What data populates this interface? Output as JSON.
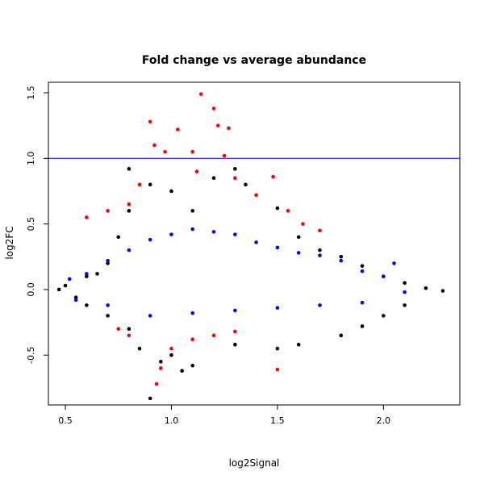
{
  "chart_data": {
    "type": "scatter",
    "title": "Fold change vs average abundance",
    "xlabel": "log2Signal",
    "ylabel": "log2FC",
    "xlim": [
      0.42,
      2.36
    ],
    "ylim": [
      -0.88,
      1.58
    ],
    "xticks": [
      0.5,
      1.0,
      1.5,
      2.0
    ],
    "yticks": [
      -0.5,
      0.0,
      0.5,
      1.0,
      1.5
    ],
    "xtick_labels": [
      "0.5",
      "1.0",
      "1.5",
      "2.0"
    ],
    "ytick_labels": [
      "-0.5",
      "0.0",
      "0.5",
      "1.0",
      "1.5"
    ],
    "grid": false,
    "legend": "none",
    "reference_lines": [
      {
        "axis": "y",
        "value": 1.0,
        "color": "#0000ff"
      }
    ],
    "colors": {
      "black": "#000000",
      "blue": "#0000ff",
      "red": "#ff0000",
      "threshold": "#0000ff"
    },
    "series": [
      {
        "color": "#000000",
        "points": [
          [
            0.47,
            0.0
          ],
          [
            0.5,
            0.03
          ],
          [
            0.55,
            -0.06
          ],
          [
            0.6,
            0.1
          ],
          [
            0.65,
            0.12
          ],
          [
            0.7,
            0.2
          ],
          [
            0.75,
            0.4
          ],
          [
            0.8,
            0.6
          ],
          [
            0.8,
            0.92
          ],
          [
            0.9,
            0.8
          ],
          [
            1.0,
            0.75
          ],
          [
            1.1,
            0.6
          ],
          [
            1.2,
            0.85
          ],
          [
            1.3,
            0.92
          ],
          [
            1.35,
            0.8
          ],
          [
            1.5,
            0.62
          ],
          [
            1.6,
            0.4
          ],
          [
            1.7,
            0.3
          ],
          [
            1.8,
            0.25
          ],
          [
            1.9,
            0.18
          ],
          [
            2.0,
            0.1
          ],
          [
            2.1,
            0.05
          ],
          [
            2.2,
            0.01
          ],
          [
            2.28,
            -0.01
          ],
          [
            0.9,
            -0.83
          ],
          [
            0.95,
            -0.55
          ],
          [
            1.0,
            -0.5
          ],
          [
            1.05,
            -0.62
          ],
          [
            1.1,
            -0.58
          ],
          [
            1.3,
            -0.42
          ],
          [
            1.5,
            -0.45
          ],
          [
            1.6,
            -0.42
          ],
          [
            1.8,
            -0.35
          ],
          [
            1.9,
            -0.28
          ],
          [
            2.0,
            -0.2
          ],
          [
            2.1,
            -0.12
          ],
          [
            0.6,
            -0.12
          ],
          [
            0.7,
            -0.2
          ],
          [
            0.8,
            -0.3
          ],
          [
            0.85,
            -0.45
          ]
        ]
      },
      {
        "color": "#0000ff",
        "points": [
          [
            0.52,
            0.08
          ],
          [
            0.6,
            0.12
          ],
          [
            0.7,
            0.22
          ],
          [
            0.8,
            0.3
          ],
          [
            0.9,
            0.38
          ],
          [
            1.0,
            0.42
          ],
          [
            1.1,
            0.46
          ],
          [
            1.2,
            0.44
          ],
          [
            1.3,
            0.42
          ],
          [
            1.4,
            0.36
          ],
          [
            1.5,
            0.32
          ],
          [
            1.6,
            0.28
          ],
          [
            1.7,
            0.26
          ],
          [
            1.8,
            0.22
          ],
          [
            1.9,
            0.14
          ],
          [
            2.0,
            0.1
          ],
          [
            2.05,
            0.2
          ],
          [
            2.1,
            -0.02
          ],
          [
            0.55,
            -0.08
          ],
          [
            0.7,
            -0.12
          ],
          [
            0.9,
            -0.2
          ],
          [
            1.1,
            -0.18
          ],
          [
            1.3,
            -0.16
          ],
          [
            1.5,
            -0.14
          ],
          [
            1.7,
            -0.12
          ],
          [
            1.9,
            -0.1
          ]
        ]
      },
      {
        "color": "#ff0000",
        "points": [
          [
            0.6,
            0.55
          ],
          [
            0.7,
            0.6
          ],
          [
            0.8,
            0.65
          ],
          [
            0.85,
            0.8
          ],
          [
            0.9,
            1.28
          ],
          [
            0.92,
            1.1
          ],
          [
            0.97,
            1.05
          ],
          [
            1.03,
            1.22
          ],
          [
            1.1,
            1.05
          ],
          [
            1.12,
            0.9
          ],
          [
            1.14,
            1.49
          ],
          [
            1.2,
            1.38
          ],
          [
            1.22,
            1.25
          ],
          [
            1.25,
            1.02
          ],
          [
            1.27,
            1.23
          ],
          [
            1.3,
            0.85
          ],
          [
            1.4,
            0.72
          ],
          [
            1.48,
            0.86
          ],
          [
            1.55,
            0.6
          ],
          [
            1.62,
            0.5
          ],
          [
            1.7,
            0.45
          ],
          [
            0.75,
            -0.3
          ],
          [
            0.8,
            -0.35
          ],
          [
            0.95,
            -0.6
          ],
          [
            1.0,
            -0.45
          ],
          [
            1.1,
            -0.38
          ],
          [
            1.2,
            -0.35
          ],
          [
            1.3,
            -0.32
          ],
          [
            1.5,
            -0.61
          ],
          [
            0.93,
            -0.72
          ]
        ]
      }
    ]
  }
}
